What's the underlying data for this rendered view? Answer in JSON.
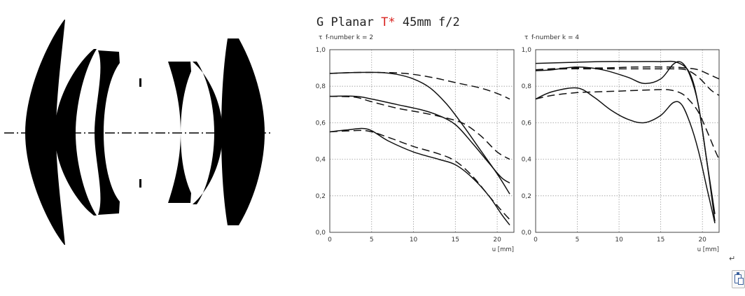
{
  "title": {
    "prefix": "G Planar ",
    "highlight": "T*",
    "suffix": " 45mm f/2",
    "highlight_color": "#d8231f"
  },
  "return_mark": "↵",
  "icons": {
    "paste": "paste-icon",
    "return": "return-arrow-icon"
  },
  "chart_data": [
    {
      "type": "line",
      "title": "f-number k = 2",
      "ylabel": "τ",
      "xlabel": "u [mm]",
      "xlim": [
        0,
        22
      ],
      "ylim": [
        0,
        1
      ],
      "xticks": [
        "0",
        "5",
        "10",
        "15",
        "20"
      ],
      "yticks": [
        "0,0",
        "0,2",
        "0,4",
        "0,6",
        "0,8",
        "1,0"
      ],
      "grid": true,
      "series": [
        {
          "style": "solid",
          "x": [
            0,
            3,
            6,
            8,
            10,
            12,
            14,
            16,
            18,
            20,
            21.5
          ],
          "y": [
            0.87,
            0.875,
            0.875,
            0.865,
            0.84,
            0.79,
            0.7,
            0.58,
            0.45,
            0.32,
            0.21
          ]
        },
        {
          "style": "dashed",
          "x": [
            0,
            3,
            6,
            9,
            12,
            15,
            18,
            20,
            21.5
          ],
          "y": [
            0.87,
            0.875,
            0.875,
            0.87,
            0.85,
            0.82,
            0.79,
            0.76,
            0.73
          ]
        },
        {
          "style": "solid",
          "x": [
            0,
            3,
            5,
            8,
            11,
            13,
            15,
            17,
            19,
            20.5,
            21.5
          ],
          "y": [
            0.745,
            0.745,
            0.73,
            0.7,
            0.67,
            0.64,
            0.59,
            0.49,
            0.38,
            0.3,
            0.27
          ]
        },
        {
          "style": "dashed",
          "x": [
            0,
            3,
            5,
            8,
            11,
            14,
            16,
            18,
            20,
            21.5
          ],
          "y": [
            0.745,
            0.74,
            0.715,
            0.68,
            0.655,
            0.625,
            0.595,
            0.53,
            0.44,
            0.4
          ]
        },
        {
          "style": "solid",
          "x": [
            0,
            2,
            4.5,
            7,
            10,
            13,
            15,
            17,
            19,
            20.5,
            21.5
          ],
          "y": [
            0.55,
            0.56,
            0.565,
            0.5,
            0.44,
            0.4,
            0.37,
            0.3,
            0.2,
            0.1,
            0.04
          ]
        },
        {
          "style": "dashed",
          "x": [
            0,
            2,
            4.5,
            7,
            10,
            13,
            15,
            17,
            19,
            20.5,
            21.5
          ],
          "y": [
            0.55,
            0.555,
            0.555,
            0.52,
            0.47,
            0.43,
            0.39,
            0.31,
            0.2,
            0.12,
            0.07
          ]
        }
      ]
    },
    {
      "type": "line",
      "title": "f-number k = 4",
      "ylabel": "τ",
      "xlabel": "u [mm]",
      "xlim": [
        0,
        22
      ],
      "ylim": [
        0,
        1
      ],
      "xticks": [
        "0",
        "5",
        "10",
        "15",
        "20"
      ],
      "yticks": [
        "0,0",
        "0,2",
        "0,4",
        "0,6",
        "0,8",
        "1,0"
      ],
      "grid": true,
      "series": [
        {
          "style": "solid",
          "x": [
            0,
            4,
            8,
            12,
            15,
            17,
            18.5,
            19.5,
            20.5,
            21.5
          ],
          "y": [
            0.925,
            0.93,
            0.935,
            0.935,
            0.935,
            0.93,
            0.87,
            0.7,
            0.4,
            0.1
          ]
        },
        {
          "style": "dashed",
          "x": [
            0,
            4,
            8,
            12,
            16,
            18,
            19.5,
            21,
            22
          ],
          "y": [
            0.89,
            0.9,
            0.9,
            0.905,
            0.905,
            0.9,
            0.89,
            0.86,
            0.84
          ]
        },
        {
          "style": "solid",
          "x": [
            0,
            2,
            5,
            8,
            11,
            13,
            15,
            16.5,
            17.5,
            18.5,
            19.5,
            20.5,
            21.5
          ],
          "y": [
            0.885,
            0.89,
            0.905,
            0.89,
            0.85,
            0.815,
            0.84,
            0.92,
            0.93,
            0.86,
            0.7,
            0.4,
            0.06
          ]
        },
        {
          "style": "dashed",
          "x": [
            0,
            4,
            8,
            12,
            16,
            18,
            19.5,
            21,
            22
          ],
          "y": [
            0.89,
            0.895,
            0.895,
            0.895,
            0.895,
            0.89,
            0.85,
            0.78,
            0.75
          ]
        },
        {
          "style": "solid",
          "x": [
            0,
            2,
            5,
            7,
            9,
            11,
            13,
            15,
            16.5,
            17.5,
            18.5,
            19.5,
            20.5,
            21.5
          ],
          "y": [
            0.73,
            0.77,
            0.79,
            0.74,
            0.67,
            0.62,
            0.6,
            0.64,
            0.71,
            0.7,
            0.6,
            0.45,
            0.25,
            0.05
          ]
        },
        {
          "style": "dashed",
          "x": [
            0,
            2,
            5,
            8,
            11,
            14,
            16,
            17.5,
            18.5,
            19.5,
            20.5,
            21.5,
            22
          ],
          "y": [
            0.73,
            0.75,
            0.765,
            0.77,
            0.775,
            0.78,
            0.78,
            0.76,
            0.72,
            0.66,
            0.56,
            0.45,
            0.4
          ]
        }
      ]
    }
  ]
}
